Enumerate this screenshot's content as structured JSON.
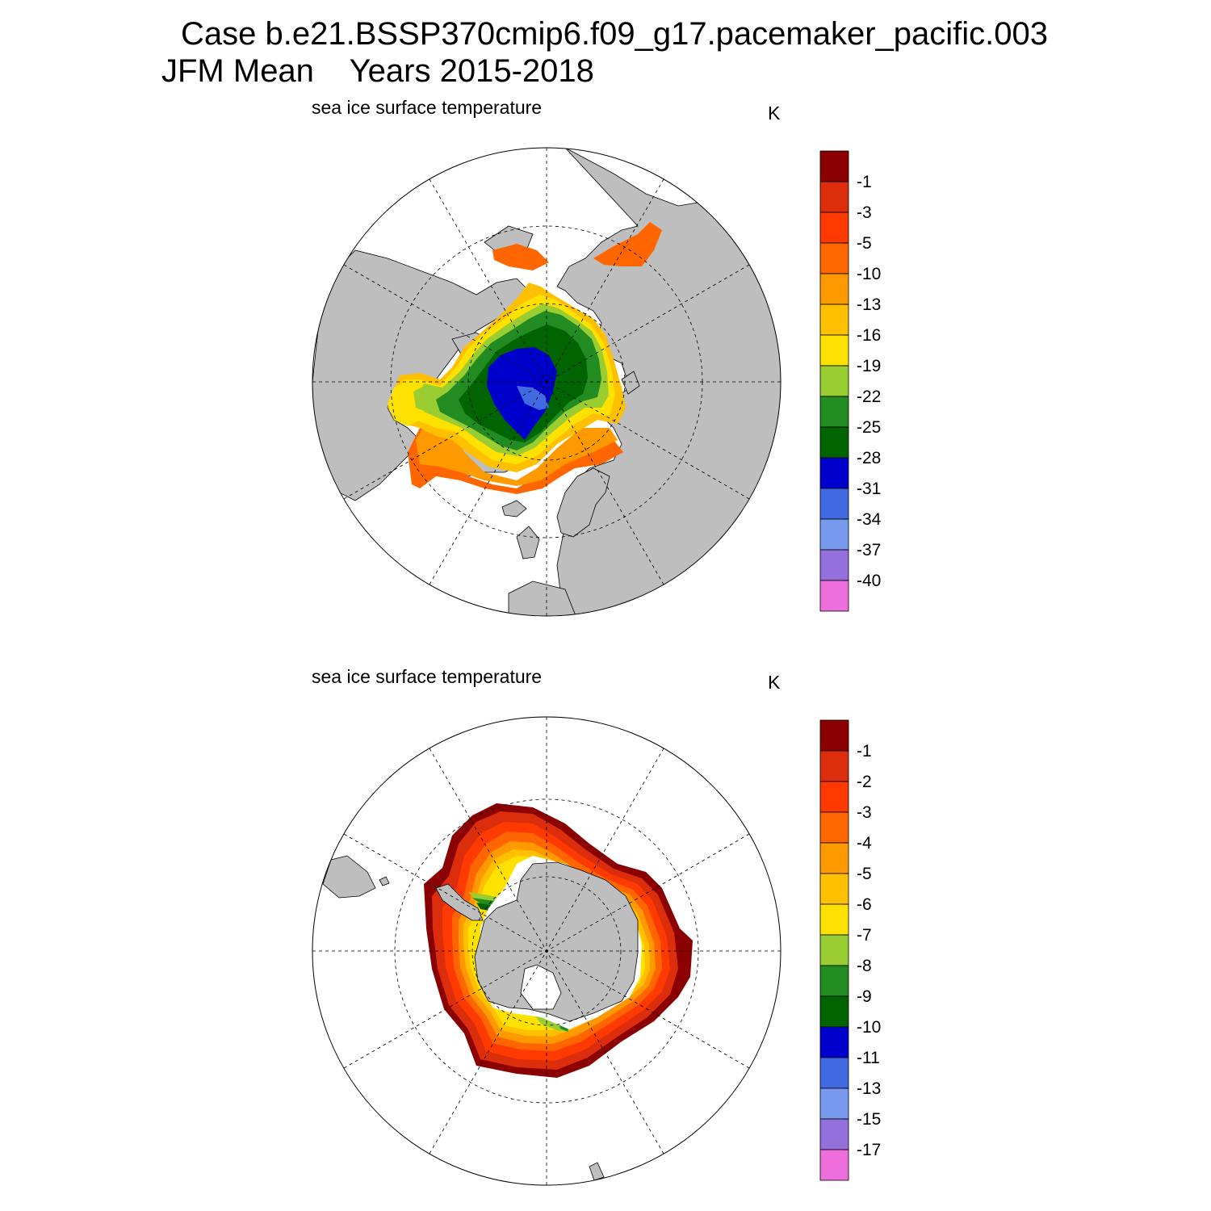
{
  "header": {
    "line1": "Case b.e21.BSSP370cmip6.f09_g17.pacemaker_pacific.003",
    "line2": "JFM Mean    Years 2015-2018"
  },
  "colors": {
    "land": "#bebebe",
    "ocean": "#ffffff",
    "palette": [
      "#8b0000",
      "#dc2d0c",
      "#ff3a00",
      "#ff6600",
      "#ff9900",
      "#ffc000",
      "#ffe100",
      "#9acd32",
      "#228b22",
      "#006400",
      "#0000cd",
      "#4169e1",
      "#7799ee",
      "#9370db",
      "#ee6edd"
    ]
  },
  "panels": [
    {
      "id": "north",
      "title": "sea ice surface temperature",
      "units": "K",
      "colorbar_labels": [
        "-1",
        "-3",
        "-5",
        "-10",
        "-13",
        "-16",
        "-19",
        "-22",
        "-25",
        "-28",
        "-31",
        "-34",
        "-37",
        "-40"
      ]
    },
    {
      "id": "south",
      "title": "sea ice surface temperature",
      "units": "K",
      "colorbar_labels": [
        "-1",
        "-2",
        "-3",
        "-4",
        "-5",
        "-6",
        "-7",
        "-8",
        "-9",
        "-10",
        "-11",
        "-13",
        "-15",
        "-17"
      ]
    }
  ]
}
